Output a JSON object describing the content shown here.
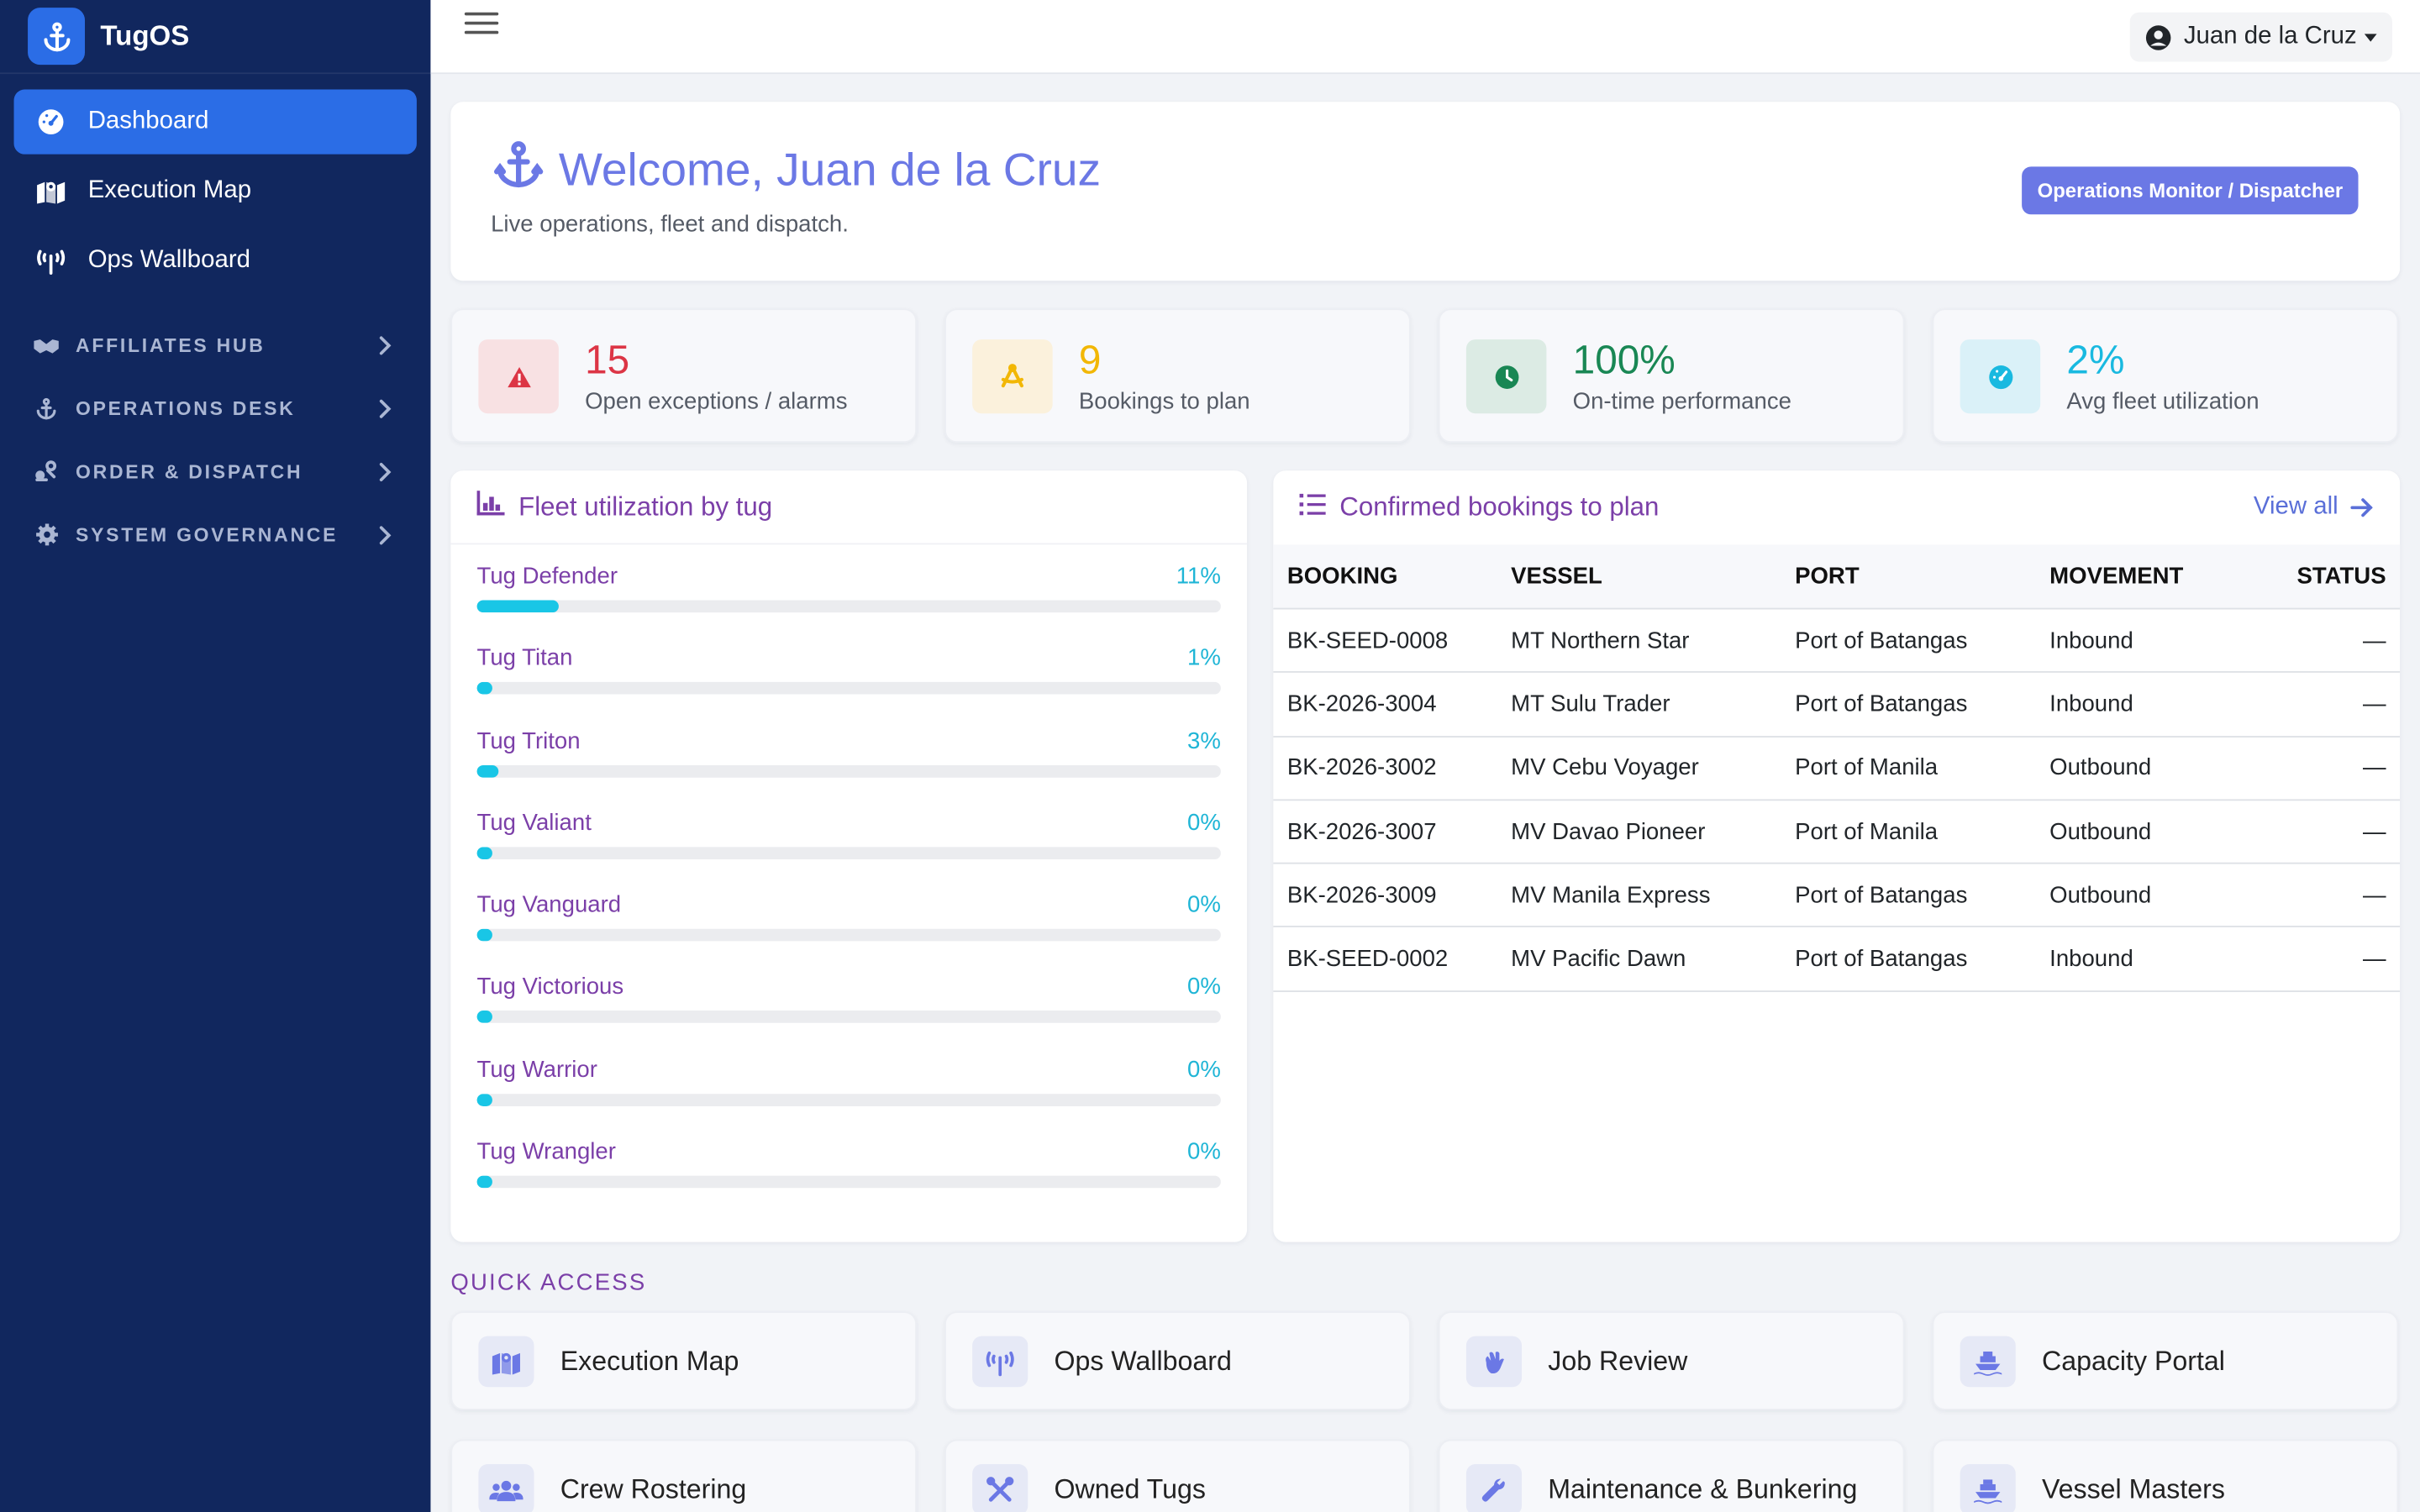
{
  "brand": {
    "name": "TugOS"
  },
  "sidebar": {
    "items": [
      {
        "label": "Dashboard",
        "icon": "dashboard-gauge-icon",
        "active": true
      },
      {
        "label": "Execution Map",
        "icon": "map-icon"
      },
      {
        "label": "Ops Wallboard",
        "icon": "broadcast-tower-icon"
      }
    ],
    "sections": [
      {
        "label": "AFFILIATES HUB",
        "icon": "handshake-icon"
      },
      {
        "label": "OPERATIONS DESK",
        "icon": "anchor-icon"
      },
      {
        "label": "ORDER & DISPATCH",
        "icon": "dispatch-icon"
      },
      {
        "label": "SYSTEM GOVERNANCE",
        "icon": "gear-icon"
      }
    ]
  },
  "topbar": {
    "user_name": "Juan de la Cruz"
  },
  "welcome": {
    "title": "Welcome, Juan de la Cruz",
    "subtitle": "Live operations, fleet and dispatch.",
    "role": "Operations Monitor / Dispatcher"
  },
  "stats": [
    {
      "value": "15",
      "label": "Open exceptions / alarms",
      "color": "#dc3545",
      "bg": "#f8e1e3",
      "icon": "warning-triangle-icon"
    },
    {
      "value": "9",
      "label": "Bookings to plan",
      "color": "#f2b705",
      "bg": "#fbf1dc",
      "icon": "compass-drafting-icon"
    },
    {
      "value": "100%",
      "label": "On-time performance",
      "color": "#198754",
      "bg": "#dcebe4",
      "icon": "clock-icon"
    },
    {
      "value": "2%",
      "label": "Avg fleet utilization",
      "color": "#19b9e0",
      "bg": "#daf1f8",
      "icon": "gauge-icon"
    }
  ],
  "fleet": {
    "title": "Fleet utilization by tug",
    "tugs": [
      {
        "name": "Tug Defender",
        "percent_label": "11%",
        "value": 11
      },
      {
        "name": "Tug Titan",
        "percent_label": "1%",
        "value": 1
      },
      {
        "name": "Tug Triton",
        "percent_label": "3%",
        "value": 3
      },
      {
        "name": "Tug Valiant",
        "percent_label": "0%",
        "value": 0
      },
      {
        "name": "Tug Vanguard",
        "percent_label": "0%",
        "value": 0
      },
      {
        "name": "Tug Victorious",
        "percent_label": "0%",
        "value": 0
      },
      {
        "name": "Tug Warrior",
        "percent_label": "0%",
        "value": 0
      },
      {
        "name": "Tug Wrangler",
        "percent_label": "0%",
        "value": 0
      }
    ]
  },
  "bookings": {
    "title": "Confirmed bookings to plan",
    "view_all": "View all",
    "columns": [
      "BOOKING",
      "VESSEL",
      "PORT",
      "MOVEMENT",
      "STATUS"
    ],
    "rows": [
      [
        "BK-SEED-0008",
        "MT Northern Star",
        "Port of Batangas",
        "Inbound",
        "—"
      ],
      [
        "BK-2026-3004",
        "MT Sulu Trader",
        "Port of Batangas",
        "Inbound",
        "—"
      ],
      [
        "BK-2026-3002",
        "MV Cebu Voyager",
        "Port of Manila",
        "Outbound",
        "—"
      ],
      [
        "BK-2026-3007",
        "MV Davao Pioneer",
        "Port of Manila",
        "Outbound",
        "—"
      ],
      [
        "BK-2026-3009",
        "MV Manila Express",
        "Port of Batangas",
        "Outbound",
        "—"
      ],
      [
        "BK-SEED-0002",
        "MV Pacific Dawn",
        "Port of Batangas",
        "Inbound",
        "—"
      ]
    ]
  },
  "quick_access": {
    "title": "QUICK ACCESS",
    "items": [
      {
        "label": "Execution Map",
        "icon": "map-icon"
      },
      {
        "label": "Ops Wallboard",
        "icon": "broadcast-tower-icon"
      },
      {
        "label": "Job Review",
        "icon": "hand-wave-icon"
      },
      {
        "label": "Capacity Portal",
        "icon": "ship-icon"
      },
      {
        "label": "Crew Rostering",
        "icon": "users-icon"
      },
      {
        "label": "Owned Tugs",
        "icon": "tools-icon"
      },
      {
        "label": "Maintenance & Bunkering",
        "icon": "wrench-icon"
      },
      {
        "label": "Vessel Masters",
        "icon": "ship-icon"
      }
    ]
  }
}
